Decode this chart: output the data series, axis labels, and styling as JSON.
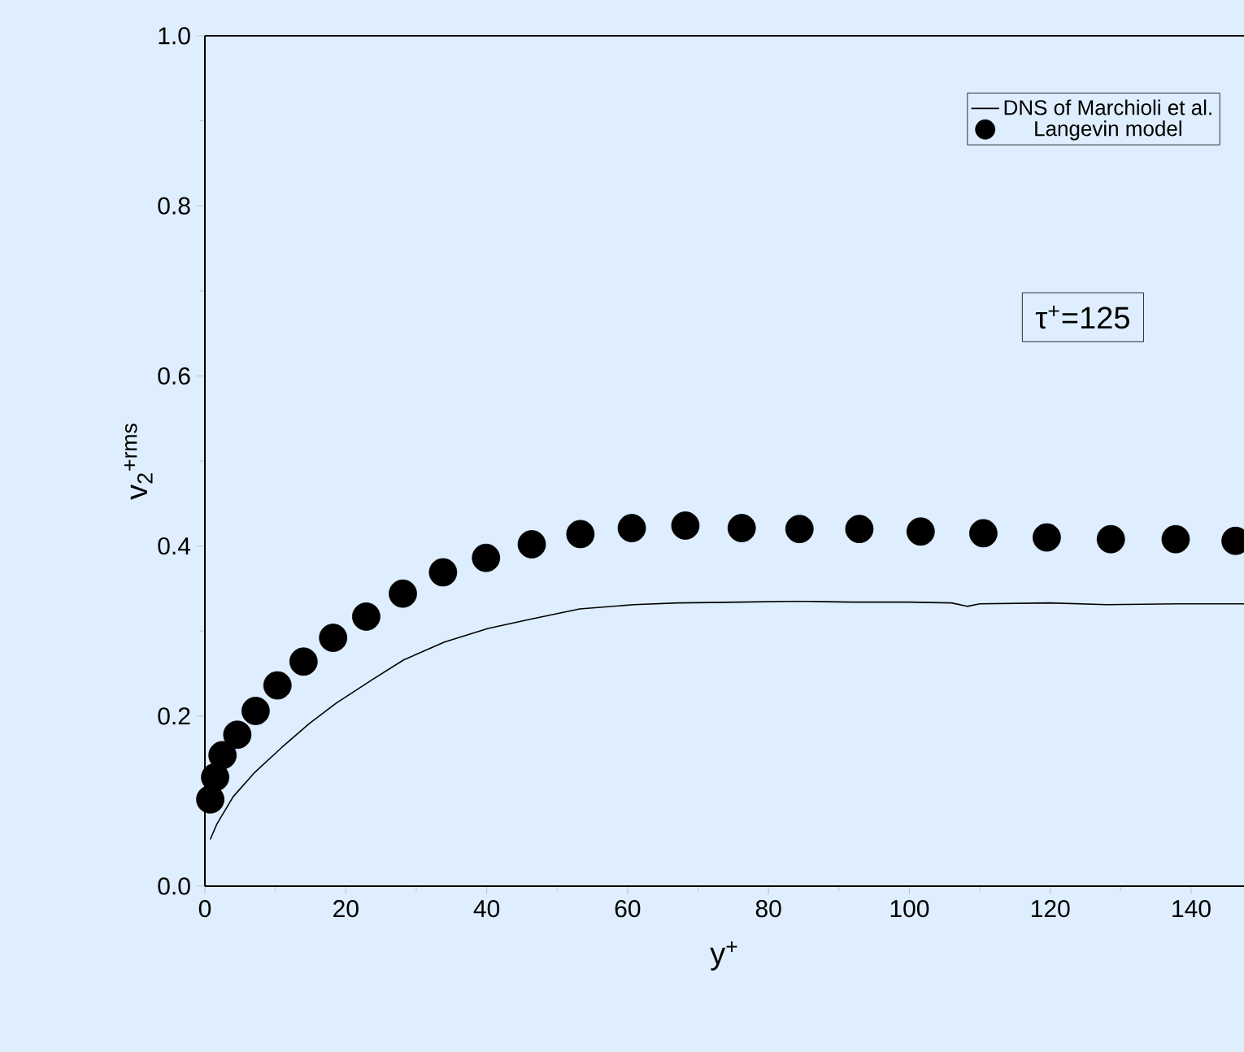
{
  "chart_data": {
    "type": "line",
    "xlabel": "y$^{+}$",
    "ylabel": "v$_{2}$$^{+rms}$",
    "annotations": [
      "τ$^{+}$=125"
    ],
    "xlim": [
      0,
      147.5
    ],
    "ylim": [
      0,
      1.0
    ],
    "xticks": [
      0,
      20,
      40,
      60,
      80,
      100,
      120,
      140
    ],
    "yticks": [
      {
        "value": 0,
        "label": "0.0"
      },
      {
        "value": 0.2,
        "label": "0.2"
      },
      {
        "value": 0.4,
        "label": "0.4"
      },
      {
        "value": 0.6,
        "label": "0.6"
      },
      {
        "value": 0.8,
        "label": "0.8"
      },
      {
        "value": 1.0,
        "label": "1.0"
      }
    ],
    "grid": false,
    "legend": "top right",
    "series": [
      {
        "name": "DNS of Marchioli et al.",
        "marker": "none",
        "line_style": "solid",
        "color": "#000000",
        "x": [
          0.76,
          1.7,
          4,
          7.1,
          10.9,
          14.8,
          18.6,
          23.6,
          28.2,
          34,
          40.2,
          46.3,
          53.2,
          60.9,
          67.1,
          76,
          84,
          92,
          100,
          106,
          108.2,
          110,
          120,
          128,
          138,
          147.5
        ],
        "values": [
          0.055,
          0.073,
          0.105,
          0.134,
          0.163,
          0.191,
          0.215,
          0.242,
          0.266,
          0.287,
          0.303,
          0.314,
          0.326,
          0.331,
          0.333,
          0.334,
          0.335,
          0.334,
          0.334,
          0.333,
          0.329,
          0.332,
          0.333,
          0.331,
          0.332,
          0.332
        ]
      },
      {
        "name": "Langevin model",
        "type": "scatter",
        "marker": "circle",
        "color": "#000000",
        "x": [
          0.76,
          1.45,
          2.5,
          4.6,
          7.2,
          10.3,
          14.0,
          18.2,
          22.9,
          28.1,
          33.8,
          39.9,
          46.4,
          53.3,
          60.6,
          68.2,
          76.2,
          84.4,
          92.9,
          101.6,
          110.5,
          119.5,
          128.6,
          137.8,
          146.3
        ],
        "values": [
          0.102,
          0.128,
          0.154,
          0.178,
          0.206,
          0.236,
          0.264,
          0.292,
          0.317,
          0.344,
          0.369,
          0.386,
          0.402,
          0.414,
          0.421,
          0.424,
          0.421,
          0.42,
          0.42,
          0.417,
          0.415,
          0.41,
          0.408,
          0.408,
          0.406
        ]
      }
    ]
  }
}
